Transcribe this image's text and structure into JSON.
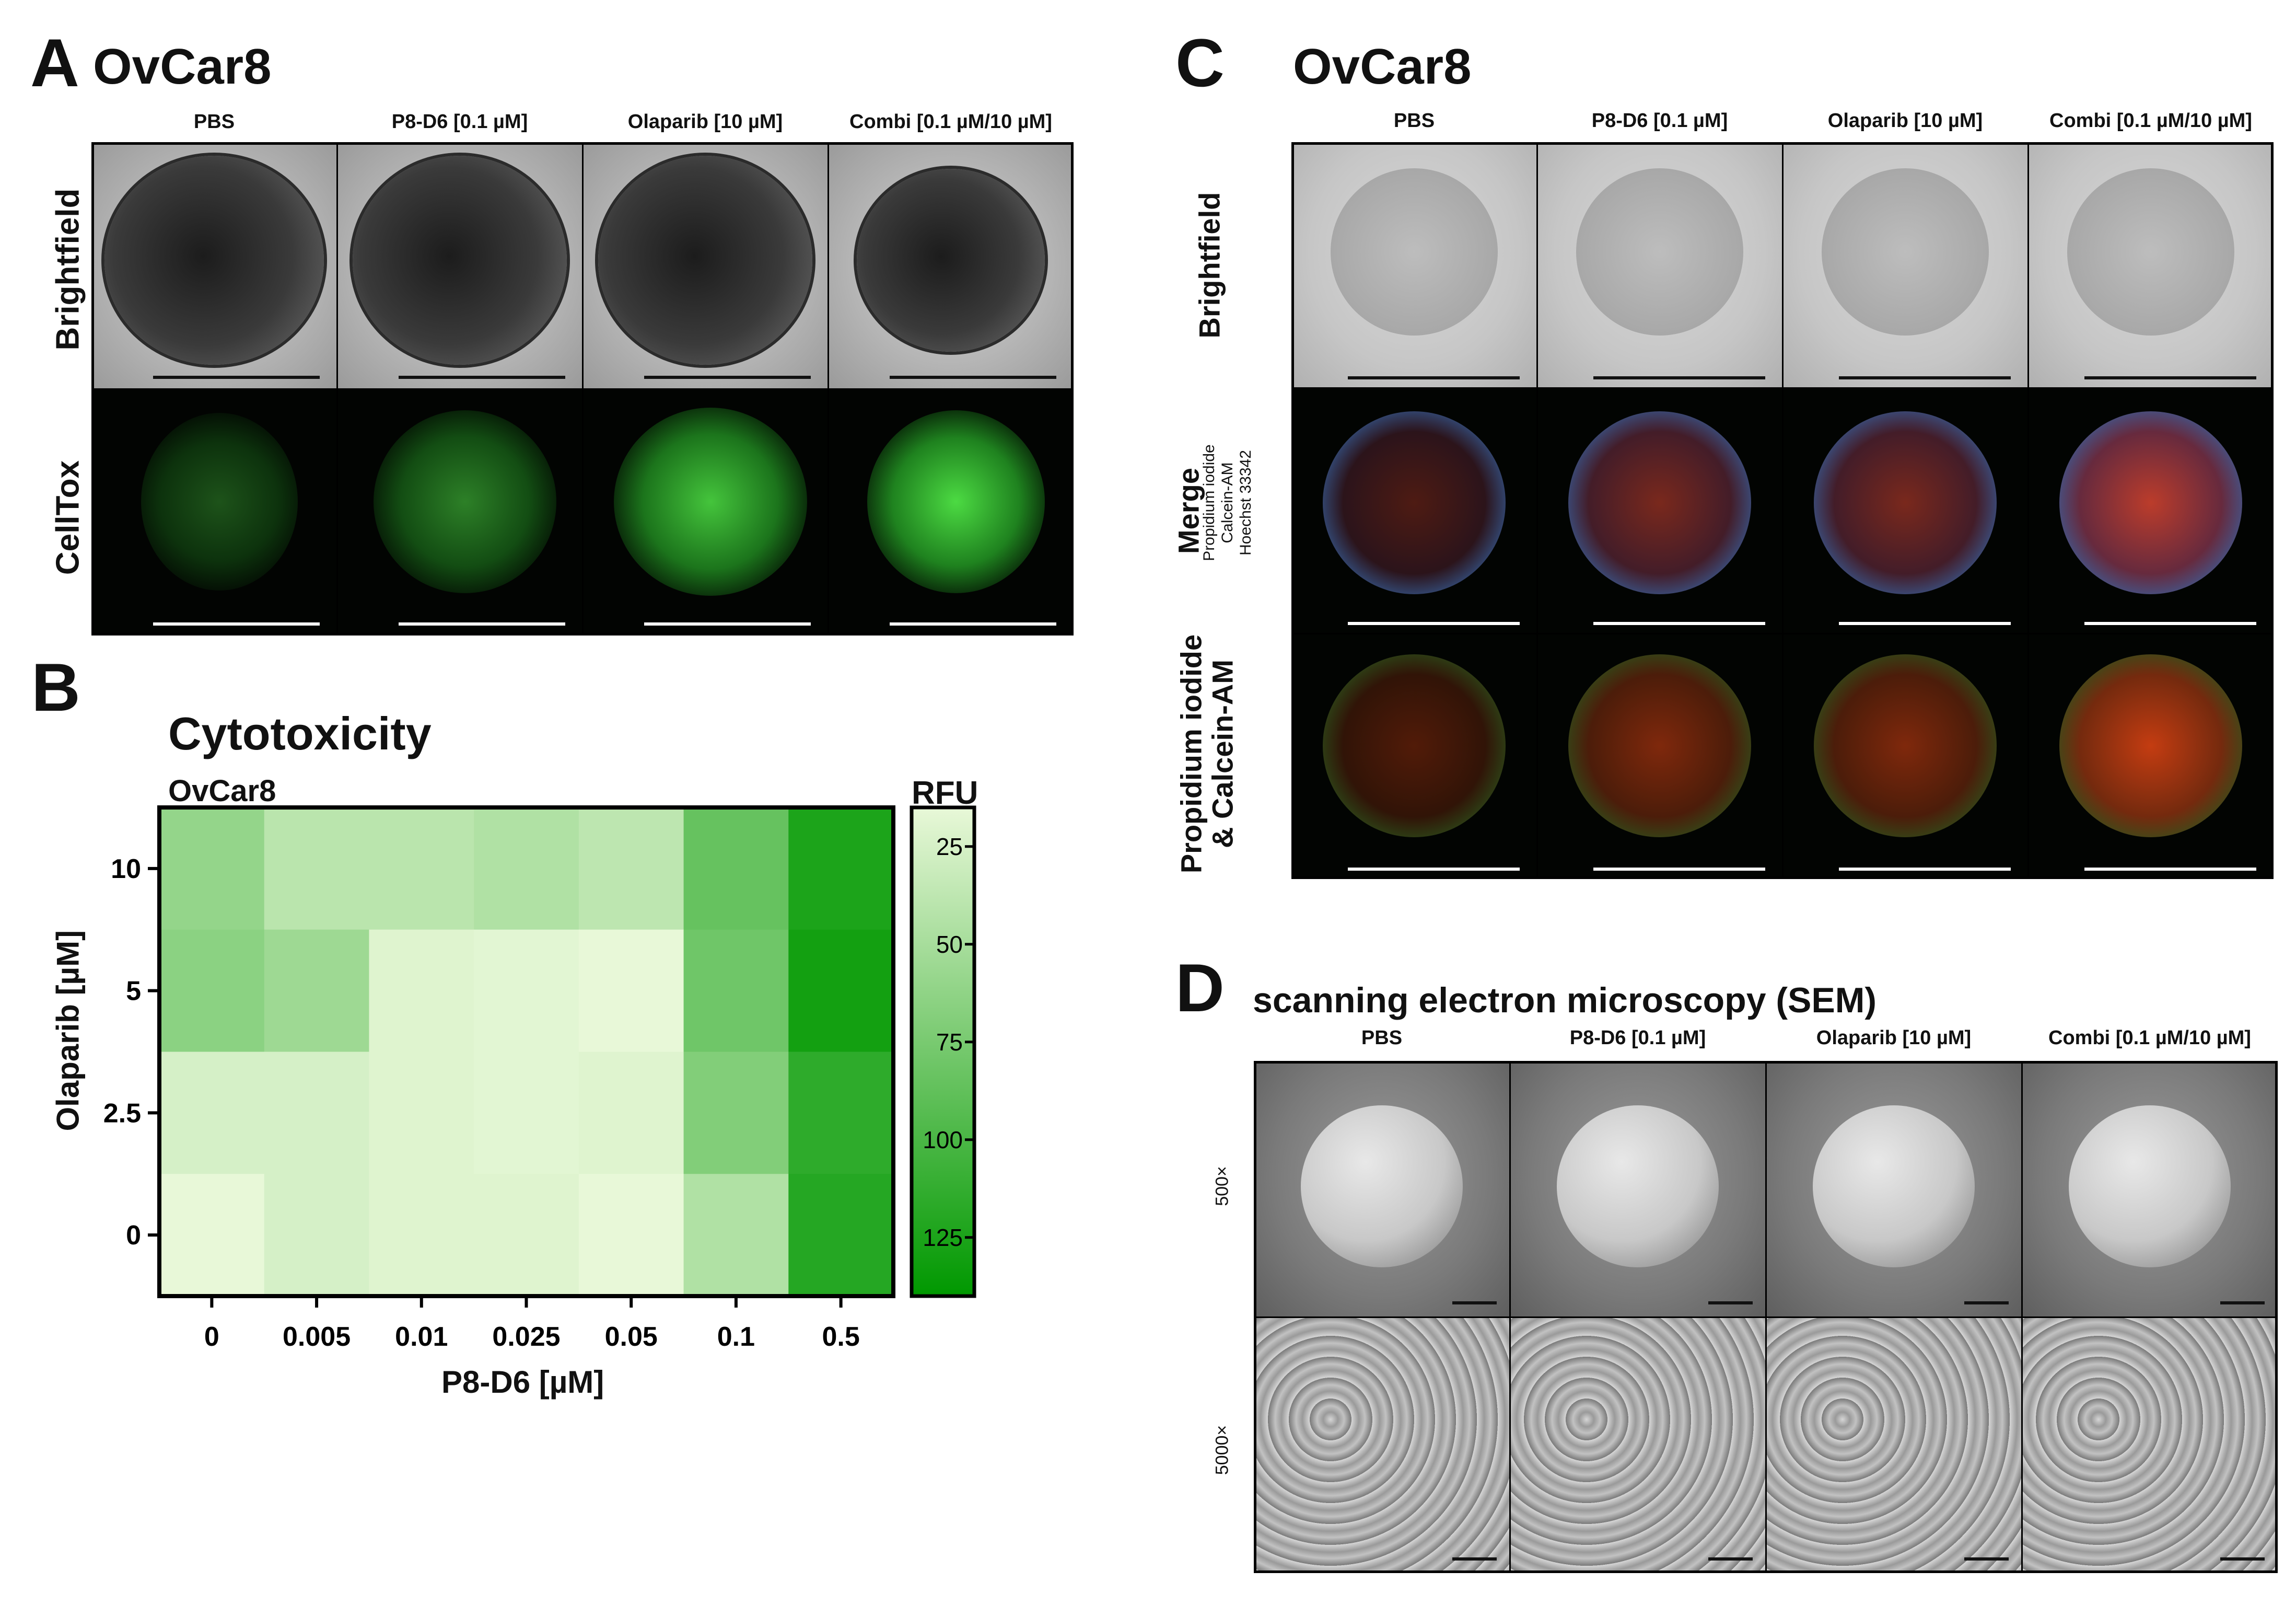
{
  "panelA": {
    "letter": "A",
    "title": "OvCar8",
    "columns": [
      "PBS",
      "P8-D6 [0.1 µM]",
      "Olaparib [10 µM]",
      "Combi [0.1 µM/10 µM]"
    ],
    "rows": [
      "Brightfield",
      "CellTox"
    ],
    "icons": [
      "spheroid-brightfield-image",
      "spheroid-celltox-image",
      "scale-bar"
    ]
  },
  "panelB": {
    "letter": "B",
    "title": "Cytotoxicity",
    "subtitle": "OvCar8",
    "colorbar": {
      "label": "RFU",
      "ticks": [
        "25",
        "50",
        "75",
        "100",
        "125"
      ],
      "tick_values": [
        25,
        50,
        75,
        100,
        125
      ],
      "colors": [
        "#e8f8d8",
        "#009800"
      ]
    }
  },
  "chart_data": {
    "type": "heatmap",
    "title": "Cytotoxicity",
    "subtitle": "OvCar8",
    "xlabel": "P8-D6 [µM]",
    "ylabel": "Olaparib [µM]",
    "x_categories": [
      "0",
      "0.005",
      "0.01",
      "0.025",
      "0.05",
      "0.1",
      "0.5"
    ],
    "y_categories": [
      "10",
      "5",
      "2.5",
      "0"
    ],
    "colorbar_label": "RFU",
    "colorbar_range": [
      15,
      140
    ],
    "values": [
      [
        60,
        40,
        40,
        45,
        38,
        85,
        125
      ],
      [
        65,
        55,
        20,
        18,
        15,
        80,
        130
      ],
      [
        25,
        25,
        20,
        18,
        20,
        70,
        115
      ],
      [
        15,
        25,
        20,
        20,
        12,
        45,
        120
      ]
    ]
  },
  "panelC": {
    "letter": "C",
    "title": "OvCar8",
    "columns": [
      "PBS",
      "P8-D6 [0.1 µM]",
      "Olaparib [10 µM]",
      "Combi [0.1 µM/10 µM]"
    ],
    "row1": "Brightfield",
    "row2_main": "Merge",
    "row2_sub": [
      "Propidium iodide",
      "Calcein-AM",
      "Hoechst 33342"
    ],
    "row3": [
      "Propidium iodide",
      "& Calcein-AM"
    ]
  },
  "panelD": {
    "letter": "D",
    "title": "scanning electron microscopy (SEM)",
    "columns": [
      "PBS",
      "P8-D6 [0.1 µM]",
      "Olaparib [10 µM]",
      "Combi [0.1 µM/10 µM]"
    ],
    "rows": [
      "500×",
      "5000×"
    ]
  }
}
